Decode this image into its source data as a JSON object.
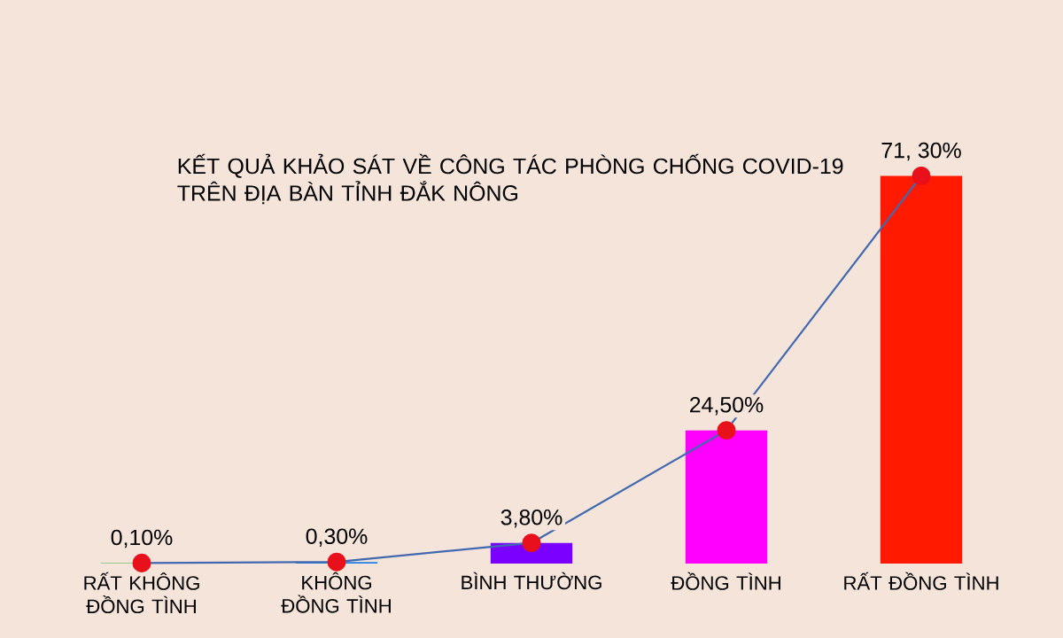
{
  "chart_data": {
    "type": "bar",
    "title": "KẾT QUẢ KHẢO SÁT VỀ CÔNG TÁC PHÒNG CHỐNG COVID-19 TRÊN ĐỊA BÀN TỈNH ĐẮK NÔNG",
    "categories": [
      "RẤT KHÔNG ĐỒNG TÌNH",
      "KHÔNG ĐỒNG TÌNH",
      "BÌNH THƯỜNG",
      "ĐỒNG TÌNH",
      "RẤT ĐỒNG TÌNH"
    ],
    "series": [
      {
        "colors": [
          "#3cb043",
          "#1e7fe8",
          "#7a00ff",
          "#ff00ff",
          "#ff1a00"
        ],
        "values": [
          0.1,
          0.3,
          3.8,
          24.5,
          71.3
        ]
      },
      {
        "type": "line",
        "color": "#4169b0",
        "colors": [
          "#e8101a",
          "#e8101a",
          "#e8101a",
          "#e8101a",
          "#e8101a"
        ],
        "marker": "circle",
        "values": [
          0.1,
          0.3,
          3.8,
          24.5,
          71.3
        ],
        "value_labels": [
          "0,10%",
          "0,30%",
          "3,80%",
          "24,50%",
          "71, 30%"
        ]
      }
    ],
    "tick_labels": "x"
  }
}
